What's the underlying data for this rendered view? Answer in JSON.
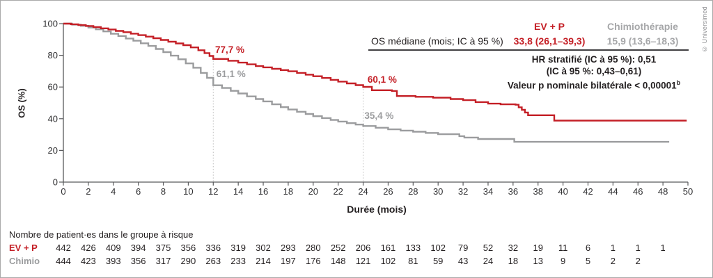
{
  "frame": {
    "copyright": "© Universimed"
  },
  "chart_data": {
    "type": "line",
    "subtype": "kaplan-meier-step",
    "title": "",
    "xlabel": "Durée (mois)",
    "ylabel": "OS (%)",
    "xlim": [
      0,
      50
    ],
    "ylim": [
      0,
      100
    ],
    "grid": false,
    "xticks": [
      0,
      2,
      4,
      6,
      8,
      10,
      12,
      14,
      16,
      18,
      20,
      22,
      24,
      26,
      28,
      30,
      32,
      34,
      36,
      38,
      40,
      42,
      44,
      46,
      48,
      50
    ],
    "yticks": [
      0,
      20,
      40,
      60,
      80,
      100
    ],
    "dotted_vlines": [
      {
        "x": 12,
        "top": 77.7
      },
      {
        "x": 24,
        "top": 60.1
      }
    ],
    "series": [
      {
        "name": "EV + P",
        "color": "#c41f26",
        "points": [
          [
            0,
            100
          ],
          [
            0.6,
            99.6
          ],
          [
            1.2,
            99.1
          ],
          [
            1.8,
            98.5
          ],
          [
            2.4,
            97.8
          ],
          [
            3,
            97.0
          ],
          [
            3.6,
            96.3
          ],
          [
            4.2,
            95.4
          ],
          [
            4.8,
            94.6
          ],
          [
            5.4,
            93.7
          ],
          [
            6,
            92.7
          ],
          [
            6.6,
            91.8
          ],
          [
            7.2,
            90.8
          ],
          [
            7.8,
            89.7
          ],
          [
            8.4,
            88.6
          ],
          [
            9,
            87.5
          ],
          [
            9.6,
            86.4
          ],
          [
            10.2,
            85.0
          ],
          [
            10.8,
            83.2
          ],
          [
            11.3,
            81.4
          ],
          [
            11.7,
            79.6
          ],
          [
            12,
            77.7
          ],
          [
            13.2,
            76.6
          ],
          [
            14,
            75.4
          ],
          [
            14.7,
            74.3
          ],
          [
            15.4,
            73.2
          ],
          [
            16,
            72.4
          ],
          [
            16.7,
            71.5
          ],
          [
            17.4,
            70.7
          ],
          [
            18,
            69.9
          ],
          [
            18.7,
            68.9
          ],
          [
            19.4,
            67.8
          ],
          [
            20,
            66.8
          ],
          [
            20.7,
            65.7
          ],
          [
            21.4,
            64.5
          ],
          [
            22,
            63.4
          ],
          [
            22.7,
            62.3
          ],
          [
            23.4,
            61.2
          ],
          [
            24,
            60.1
          ],
          [
            24.7,
            58.0
          ],
          [
            26.3,
            57.5
          ],
          [
            26.7,
            54.3
          ],
          [
            28.2,
            53.8
          ],
          [
            29.6,
            53.3
          ],
          [
            31,
            52.4
          ],
          [
            32,
            51.7
          ],
          [
            33,
            50.5
          ],
          [
            34,
            49.5
          ],
          [
            35,
            49.1
          ],
          [
            36.2,
            48.8
          ],
          [
            36.45,
            47.2
          ],
          [
            36.7,
            45.6
          ],
          [
            36.95,
            43.9
          ],
          [
            37.2,
            42.2
          ],
          [
            39.3,
            38.8
          ],
          [
            49.9,
            38.8
          ]
        ]
      },
      {
        "name": "Chimiothérapie",
        "color": "#9b9c9e",
        "points": [
          [
            0,
            100
          ],
          [
            0.7,
            99.4
          ],
          [
            1.4,
            98.6
          ],
          [
            2,
            97.6
          ],
          [
            2.6,
            96.4
          ],
          [
            3.2,
            95.1
          ],
          [
            3.8,
            93.6
          ],
          [
            4.4,
            92.2
          ],
          [
            5,
            90.6
          ],
          [
            5.6,
            89.2
          ],
          [
            6.2,
            87.6
          ],
          [
            6.8,
            85.9
          ],
          [
            7.4,
            84.0
          ],
          [
            8,
            82.0
          ],
          [
            8.6,
            79.8
          ],
          [
            9.2,
            77.5
          ],
          [
            9.8,
            74.9
          ],
          [
            10.4,
            72.2
          ],
          [
            11,
            68.9
          ],
          [
            11.5,
            65.8
          ],
          [
            12,
            61.1
          ],
          [
            12.7,
            59.4
          ],
          [
            13.4,
            57.6
          ],
          [
            14,
            55.9
          ],
          [
            14.7,
            54.1
          ],
          [
            15.4,
            52.4
          ],
          [
            16,
            50.9
          ],
          [
            16.7,
            49.1
          ],
          [
            17.4,
            47.3
          ],
          [
            18,
            45.8
          ],
          [
            18.7,
            44.4
          ],
          [
            19.4,
            43.0
          ],
          [
            20,
            41.6
          ],
          [
            20.7,
            40.4
          ],
          [
            21.4,
            39.2
          ],
          [
            22,
            38.2
          ],
          [
            22.7,
            37.2
          ],
          [
            23.4,
            36.3
          ],
          [
            24,
            35.4
          ],
          [
            25,
            34.3
          ],
          [
            26,
            33.3
          ],
          [
            27,
            32.5
          ],
          [
            28,
            31.8
          ],
          [
            29,
            31.0
          ],
          [
            30,
            30.2
          ],
          [
            31.7,
            29.0
          ],
          [
            32.1,
            28.1
          ],
          [
            33.2,
            27.2
          ],
          [
            36.1,
            25.4
          ],
          [
            48.5,
            25.4
          ]
        ]
      }
    ],
    "annotations": [
      {
        "text": "77,7 %",
        "x": 12.15,
        "y": 80.6,
        "color": "#c41f26"
      },
      {
        "text": "61,1 %",
        "x": 12.25,
        "y": 65.3,
        "color": "#9b9c9e"
      },
      {
        "text": "60,1 %",
        "x": 24.35,
        "y": 62.0,
        "color": "#c41f26"
      },
      {
        "text": "35,4 %",
        "x": 24.1,
        "y": 39.2,
        "color": "#9b9c9e"
      }
    ],
    "legend_position": "none"
  },
  "stats_table": {
    "row_label": "OS médiane (mois; IC à 95 %)",
    "col1_header": "EV + P",
    "col2_header": "Chimiothérapie",
    "col1_value": "33,8 (26,1–39,3)",
    "col2_value": "15,9 (13,6–18,3)",
    "hr_line1": "HR stratifié (IC à 95 %): 0,51",
    "hr_line2": "(IC à 95 %: 0,43–0,61)",
    "hr_line3": "Valeur p nominale bilatérale < 0,00001",
    "hr_line3_sup": "b"
  },
  "at_risk": {
    "title": "Nombre de patient·es dans le groupe à risque",
    "rows": [
      {
        "label": "EV + P",
        "color": "#c41f26",
        "values": [
          442,
          426,
          409,
          394,
          375,
          356,
          336,
          319,
          302,
          293,
          280,
          252,
          206,
          161,
          133,
          102,
          79,
          52,
          32,
          19,
          11,
          6,
          1,
          1,
          1
        ]
      },
      {
        "label": "Chimio",
        "color": "#9b9c9e",
        "values": [
          444,
          423,
          393,
          356,
          317,
          290,
          263,
          233,
          214,
          197,
          176,
          148,
          121,
          102,
          81,
          59,
          43,
          24,
          18,
          13,
          9,
          5,
          2,
          2
        ]
      }
    ]
  }
}
